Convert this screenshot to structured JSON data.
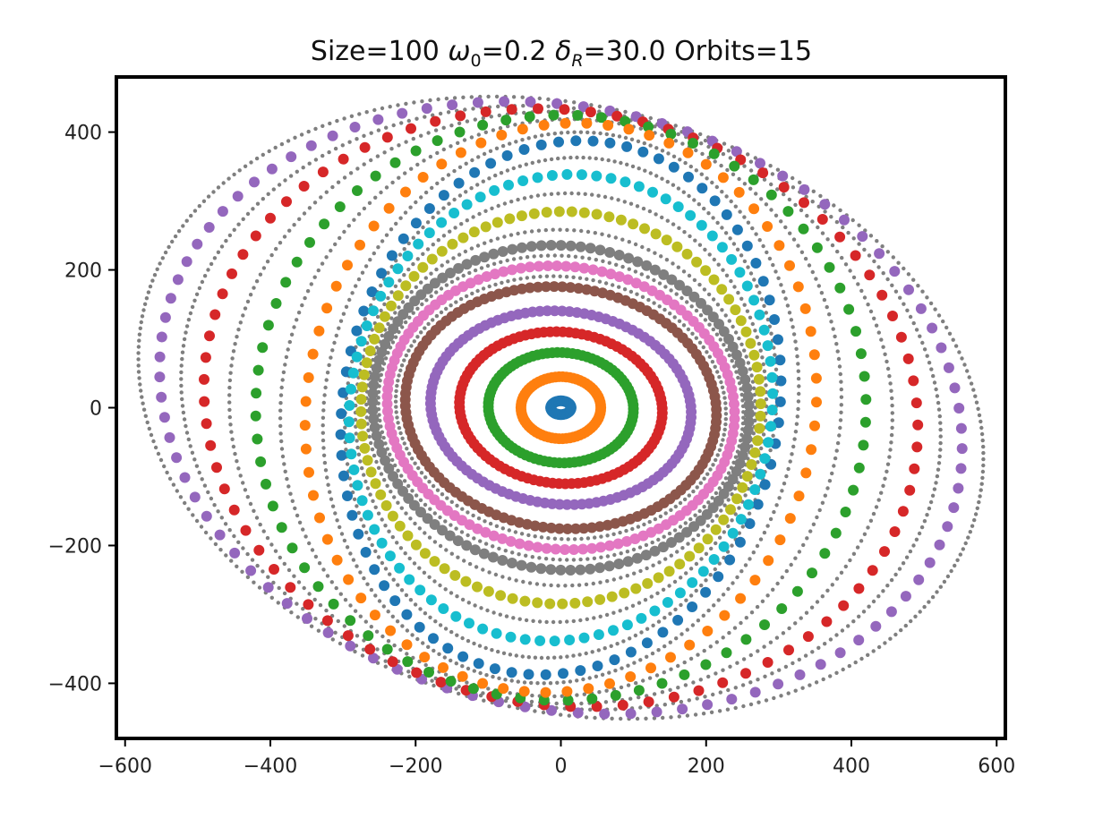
{
  "chart_data": {
    "type": "scatter",
    "title": {
      "prefix": "Size=100 ",
      "omega_symbol": "ω",
      "omega_sub": "0",
      "omega_value": "=0.2 ",
      "delta_symbol": "δ",
      "delta_sub": "R",
      "delta_value": "=30.0 Orbits=15"
    },
    "xlabel": "",
    "ylabel": "",
    "xlim": [
      -612,
      612
    ],
    "ylim": [
      -480,
      480
    ],
    "xticks": [
      -600,
      -400,
      -200,
      0,
      200,
      400,
      600
    ],
    "yticks": [
      -400,
      -200,
      0,
      200,
      400
    ],
    "xtick_labels": [
      "−600",
      "−400",
      "−200",
      "0",
      "200",
      "400",
      "600"
    ],
    "ytick_labels": [
      "−400",
      "−200",
      "0",
      "200",
      "400"
    ],
    "grid": false,
    "legend": "none",
    "orbits": [
      {
        "index": 1,
        "color": "#1f77b4",
        "ray": 14,
        "rby": 10,
        "tilt_deg": 0,
        "points": 40
      },
      {
        "index": 2,
        "color": "#ff7f0e",
        "ray": 55,
        "rby": 45,
        "tilt_deg": 0,
        "points": 70
      },
      {
        "index": 3,
        "color": "#2ca02c",
        "ray": 100,
        "rby": 80,
        "tilt_deg": -4,
        "points": 90
      },
      {
        "index": 4,
        "color": "#d62728",
        "ray": 140,
        "rby": 110,
        "tilt_deg": -6,
        "points": 100
      },
      {
        "index": 5,
        "color": "#9467bd",
        "ray": 180,
        "rby": 140,
        "tilt_deg": -7,
        "points": 110
      },
      {
        "index": 6,
        "color": "#8c564b",
        "ray": 215,
        "rby": 175,
        "tilt_deg": -8,
        "points": 120
      },
      {
        "index": 7,
        "color": "#e377c2",
        "ray": 240,
        "rby": 205,
        "tilt_deg": -9,
        "points": 120
      },
      {
        "index": 8,
        "color": "#7f7f7f",
        "ray": 260,
        "rby": 235,
        "tilt_deg": -10,
        "points": 120
      },
      {
        "index": 9,
        "color": "#bcbd22",
        "ray": 275,
        "rby": 285,
        "tilt_deg": -10,
        "points": 100
      },
      {
        "index": 10,
        "color": "#17becf",
        "ray": 290,
        "rby": 340,
        "tilt_deg": -10,
        "points": 90
      },
      {
        "index": 11,
        "color": "#1f77b4",
        "ray": 300,
        "rby": 390,
        "tilt_deg": -10,
        "points": 80
      },
      {
        "index": 12,
        "color": "#ff7f0e",
        "ray": 350,
        "rby": 415,
        "tilt_deg": -10,
        "points": 75
      },
      {
        "index": 13,
        "color": "#2ca02c",
        "ray": 420,
        "rby": 425,
        "tilt_deg": -12,
        "points": 80
      },
      {
        "index": 14,
        "color": "#d62728",
        "ray": 495,
        "rby": 430,
        "tilt_deg": -14,
        "points": 85
      },
      {
        "index": 15,
        "color": "#9467bd",
        "ray": 560,
        "rby": 435,
        "tilt_deg": -15,
        "points": 95
      }
    ],
    "dotted_guides": {
      "color": "#7f7f7f",
      "rings": [
        {
          "ray": 228,
          "rby": 190,
          "tilt_deg": -8
        },
        {
          "ray": 252,
          "rby": 220,
          "tilt_deg": -9
        },
        {
          "ray": 268,
          "rby": 258,
          "tilt_deg": -10
        },
        {
          "ray": 282,
          "rby": 312,
          "tilt_deg": -10
        },
        {
          "ray": 295,
          "rby": 365,
          "tilt_deg": -10
        },
        {
          "ray": 325,
          "rby": 402,
          "tilt_deg": -10
        },
        {
          "ray": 385,
          "rby": 420,
          "tilt_deg": -11
        },
        {
          "ray": 458,
          "rby": 428,
          "tilt_deg": -13
        },
        {
          "ray": 528,
          "rby": 432,
          "tilt_deg": -14
        },
        {
          "ray": 592,
          "rby": 438,
          "tilt_deg": -16
        }
      ]
    }
  }
}
